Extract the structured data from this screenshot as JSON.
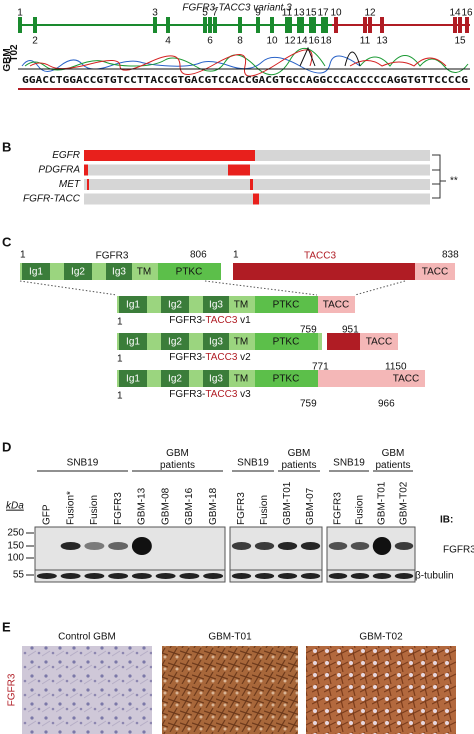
{
  "panel_a": {
    "title": "FGFR3-TACC3 variant 3",
    "exons_top": [
      "1",
      "3",
      "5",
      "7",
      "9",
      "11",
      "13",
      "15",
      "17",
      "10",
      "12",
      "14",
      "16"
    ],
    "exons_bottom": [
      "2",
      "4",
      "6",
      "8",
      "10",
      "12",
      "14",
      "16",
      "18",
      "11",
      "13",
      "15"
    ],
    "sample": [
      "GBM",
      "T02"
    ],
    "sequence": "GGACCTGGACCGTGTCCTTACCGTGACGTCCACCGACGTGCCAGGCCCACCCCCAGGTGTTCCCCG"
  },
  "panel_b": {
    "label": "B",
    "genes": [
      "EGFR",
      "PDGFRA",
      "MET",
      "FGFR-TACC"
    ],
    "significance": "**"
  },
  "panel_c": {
    "label": "C",
    "fgfr3": {
      "name": "FGFR3",
      "start": "1",
      "end": "806",
      "domains": [
        "Ig1",
        "Ig2",
        "Ig3",
        "TM",
        "PTKC"
      ]
    },
    "tacc3": {
      "name": "TACC3",
      "start": "1",
      "end": "838",
      "domain": "TACC"
    },
    "variants": [
      {
        "prefix": "FGFR3-",
        "partner": "TACC3",
        "version": " v1",
        "start": "1",
        "break": "759",
        "end": "951"
      },
      {
        "prefix": "FGFR3-",
        "partner": "TACC3",
        "version": " v2",
        "start": "1",
        "break": "771",
        "end": "1150"
      },
      {
        "prefix": "FGFR3-",
        "partner": "TACC3",
        "version": " v3",
        "start": "1",
        "break": "759",
        "end": "966"
      }
    ]
  },
  "panel_d": {
    "label": "D",
    "groups": [
      "SNB19",
      "GBM patients",
      "SNB19",
      "GBM patients",
      "SNB19",
      "GBM patients"
    ],
    "lanes": [
      [
        "GFP",
        "Fusion*",
        "Fusion",
        "FGFR3",
        "GBM-13",
        "GBM-08",
        "GBM-16",
        "GBM-18"
      ],
      [
        "FGFR3",
        "Fusion",
        "GBM-T01",
        "GBM-07"
      ],
      [
        "FGFR3",
        "Fusion",
        "GBM-T01",
        "GBM-T02"
      ]
    ],
    "kda": "kDa",
    "markers": [
      "250",
      "150",
      "100",
      "55"
    ],
    "ib": "IB:",
    "antibodies": [
      "FGFR3",
      "β-tubulin"
    ]
  },
  "panel_e": {
    "label": "E",
    "stain": "FGFR3",
    "images": [
      "Control GBM",
      "GBM-T01",
      "GBM-T02"
    ]
  }
}
